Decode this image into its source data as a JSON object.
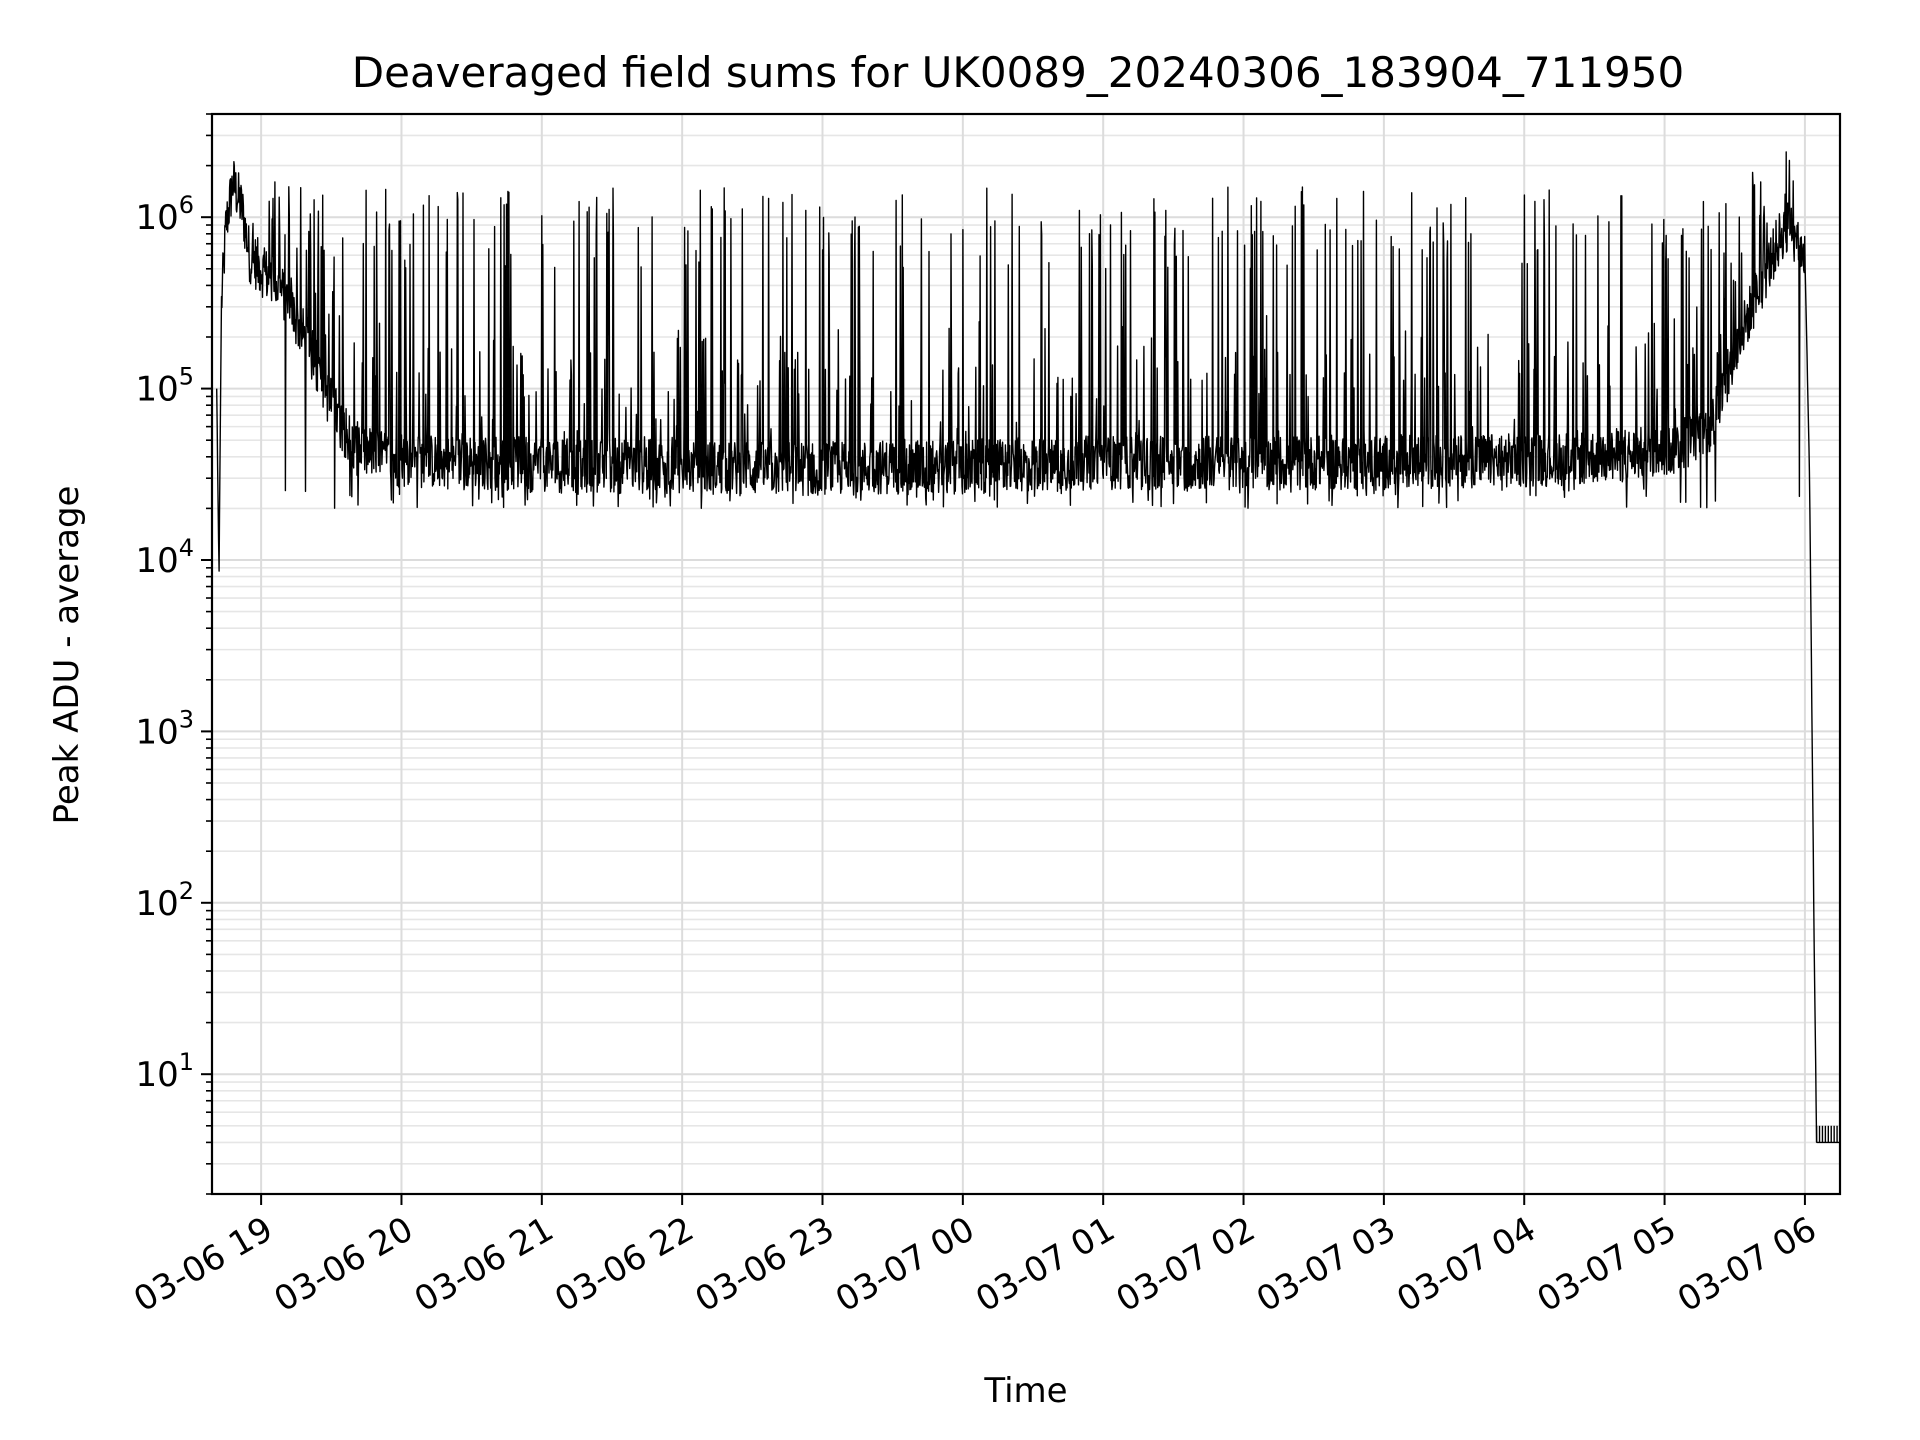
{
  "chart_data": {
    "type": "line",
    "title": "Deaveraged field sums for UK0089_20240306_183904_711950",
    "xlabel": "Time",
    "ylabel": "Peak ADU - average",
    "yscale": "log",
    "ylim": [
      2,
      4000000
    ],
    "xlim": [
      "2024-03-06 18:39",
      "2024-03-07 06:15"
    ],
    "grid": true,
    "line_color": "#000000",
    "x_ticks": [
      {
        "t": "2024-03-06 19:00",
        "label": "03-06 19"
      },
      {
        "t": "2024-03-06 20:00",
        "label": "03-06 20"
      },
      {
        "t": "2024-03-06 21:00",
        "label": "03-06 21"
      },
      {
        "t": "2024-03-06 22:00",
        "label": "03-06 22"
      },
      {
        "t": "2024-03-06 23:00",
        "label": "03-06 23"
      },
      {
        "t": "2024-03-07 00:00",
        "label": "03-07 00"
      },
      {
        "t": "2024-03-07 01:00",
        "label": "03-07 01"
      },
      {
        "t": "2024-03-07 02:00",
        "label": "03-07 02"
      },
      {
        "t": "2024-03-07 03:00",
        "label": "03-07 03"
      },
      {
        "t": "2024-03-07 04:00",
        "label": "03-07 04"
      },
      {
        "t": "2024-03-07 05:00",
        "label": "03-07 05"
      },
      {
        "t": "2024-03-07 06:00",
        "label": "03-07 06"
      }
    ],
    "y_ticks": [
      {
        "value": 10,
        "base": "10",
        "exp": "1"
      },
      {
        "value": 100,
        "base": "10",
        "exp": "2"
      },
      {
        "value": 1000,
        "base": "10",
        "exp": "3"
      },
      {
        "value": 10000,
        "base": "10",
        "exp": "4"
      },
      {
        "value": 100000,
        "base": "10",
        "exp": "5"
      },
      {
        "value": 1000000,
        "base": "10",
        "exp": "6"
      }
    ],
    "series": [
      {
        "x": [
          "2024-03-06 18:41",
          "2024-03-06 18:42",
          "2024-03-06 18:43",
          "2024-03-06 18:45",
          "2024-03-06 18:48",
          "2024-03-06 18:52",
          "2024-03-06 18:55",
          "2024-03-06 19:00",
          "2024-03-06 19:10",
          "2024-03-06 19:20",
          "2024-03-06 19:30",
          "2024-03-06 19:40",
          "2024-03-06 19:50",
          "2024-03-06 20:00",
          "2024-03-06 20:30",
          "2024-03-06 21:00",
          "2024-03-06 21:30",
          "2024-03-06 22:00",
          "2024-03-06 22:30",
          "2024-03-06 23:00",
          "2024-03-06 23:30",
          "2024-03-07 00:00",
          "2024-03-07 00:30",
          "2024-03-07 01:00",
          "2024-03-07 01:30",
          "2024-03-07 02:00",
          "2024-03-07 02:30",
          "2024-03-07 03:00",
          "2024-03-07 03:30",
          "2024-03-07 04:00",
          "2024-03-07 04:30",
          "2024-03-07 05:00",
          "2024-03-07 05:20",
          "2024-03-07 05:35",
          "2024-03-07 05:50",
          "2024-03-07 05:55",
          "2024-03-07 06:00",
          "2024-03-07 06:02",
          "2024-03-07 06:04",
          "2024-03-07 06:05",
          "2024-03-07 06:15"
        ],
        "y": [
          100000,
          8000,
          300000,
          900000,
          1600000,
          1100000,
          600000,
          500000,
          350000,
          180000,
          80000,
          45000,
          40000,
          38000,
          37000,
          36000,
          35000,
          35000,
          34000,
          34000,
          35000,
          35000,
          36000,
          37000,
          37000,
          37000,
          37000,
          37000,
          38000,
          38000,
          40000,
          42000,
          60000,
          250000,
          800000,
          950000,
          600000,
          30000,
          50,
          4,
          4
        ]
      }
    ],
    "spikes": {
      "baseline_min": 20000,
      "peak_range": [
        500000,
        1500000
      ],
      "max_peak": 2400000,
      "max_peak_time": "2024-03-07 05:52"
    }
  }
}
